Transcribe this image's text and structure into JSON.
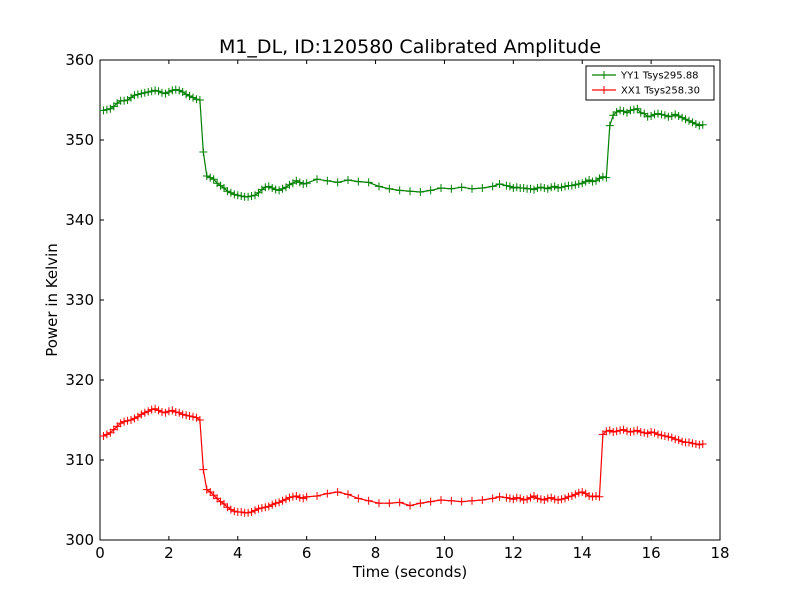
{
  "chart_data": {
    "type": "line",
    "title": "M1_DL, ID:120580 Calibrated Amplitude",
    "xlabel": "Time (seconds)",
    "ylabel": "Power in Kelvin",
    "xlim": [
      0,
      18
    ],
    "ylim": [
      300,
      360
    ],
    "xticks": [
      0,
      2,
      4,
      6,
      8,
      10,
      12,
      14,
      16,
      18
    ],
    "yticks": [
      300,
      310,
      320,
      330,
      340,
      350,
      360
    ],
    "grid": false,
    "legend_position": "top-right",
    "series": [
      {
        "name": "YY1 Tsys295.88",
        "color": "#008000",
        "marker": "+",
        "x": [
          0.1,
          0.2,
          0.3,
          0.4,
          0.5,
          0.6,
          0.7,
          0.8,
          0.9,
          1.0,
          1.1,
          1.2,
          1.3,
          1.4,
          1.5,
          1.6,
          1.7,
          1.8,
          1.9,
          2.0,
          2.1,
          2.2,
          2.3,
          2.4,
          2.5,
          2.6,
          2.7,
          2.8,
          2.9,
          3.0,
          3.1,
          3.2,
          3.3,
          3.4,
          3.5,
          3.6,
          3.7,
          3.8,
          3.9,
          4.0,
          4.1,
          4.2,
          4.3,
          4.4,
          4.5,
          4.6,
          4.7,
          4.8,
          4.9,
          5.0,
          5.1,
          5.2,
          5.3,
          5.4,
          5.5,
          5.6,
          5.7,
          5.8,
          5.9,
          6.0,
          6.3,
          6.6,
          6.9,
          7.2,
          7.5,
          7.8,
          8.1,
          8.4,
          8.7,
          9.0,
          9.3,
          9.6,
          9.9,
          10.2,
          10.5,
          10.8,
          11.1,
          11.4,
          11.6,
          11.8,
          11.9,
          12.0,
          12.1,
          12.2,
          12.3,
          12.4,
          12.5,
          12.6,
          12.7,
          12.8,
          12.9,
          13.0,
          13.1,
          13.2,
          13.3,
          13.4,
          13.5,
          13.6,
          13.7,
          13.8,
          13.9,
          14.0,
          14.1,
          14.2,
          14.3,
          14.4,
          14.5,
          14.6,
          14.7,
          14.8,
          14.9,
          15.0,
          15.1,
          15.2,
          15.3,
          15.4,
          15.5,
          15.6,
          15.7,
          15.8,
          15.9,
          16.0,
          16.1,
          16.2,
          16.3,
          16.4,
          16.5,
          16.6,
          16.7,
          16.8,
          16.9,
          17.0,
          17.1,
          17.2,
          17.3,
          17.4,
          17.5
        ],
        "y": [
          353.7,
          353.8,
          353.9,
          354.2,
          354.6,
          354.9,
          354.9,
          355.0,
          355.3,
          355.6,
          355.7,
          355.8,
          355.9,
          356.0,
          356.1,
          356.2,
          356.1,
          355.9,
          355.8,
          356.0,
          356.2,
          356.3,
          356.2,
          356.0,
          355.7,
          355.5,
          355.3,
          355.1,
          355.0,
          348.5,
          345.5,
          345.3,
          345.1,
          344.6,
          344.3,
          344.0,
          343.6,
          343.4,
          343.2,
          343.1,
          343.0,
          342.9,
          342.9,
          343.0,
          343.1,
          343.4,
          343.8,
          344.1,
          344.2,
          344.0,
          343.8,
          343.7,
          343.9,
          344.1,
          344.4,
          344.6,
          344.9,
          344.7,
          344.5,
          344.6,
          345.1,
          344.9,
          344.7,
          345.0,
          344.8,
          344.7,
          344.2,
          343.9,
          343.7,
          343.6,
          343.5,
          343.7,
          344.0,
          343.9,
          344.1,
          343.9,
          344.0,
          344.2,
          344.5,
          344.3,
          344.2,
          344.0,
          344.1,
          344.0,
          344.0,
          343.9,
          343.9,
          343.8,
          344.0,
          344.1,
          344.0,
          343.9,
          344.1,
          344.2,
          344.0,
          344.1,
          344.2,
          344.3,
          344.3,
          344.4,
          344.5,
          344.6,
          344.8,
          345.0,
          344.8,
          344.9,
          345.2,
          345.4,
          345.3,
          351.8,
          353.1,
          353.5,
          353.7,
          353.6,
          353.4,
          353.7,
          353.8,
          353.9,
          353.4,
          353.3,
          352.9,
          353.0,
          353.2,
          353.3,
          353.2,
          353.1,
          352.9,
          353.0,
          353.2,
          353.0,
          352.8,
          352.6,
          352.4,
          352.2,
          352.0,
          351.8,
          351.9
        ],
        "_comment": "values estimated from gridlines"
      },
      {
        "name": "XX1 Tsys258.30",
        "color": "#ff0000",
        "marker": "+",
        "x": [
          0.1,
          0.2,
          0.3,
          0.4,
          0.5,
          0.6,
          0.7,
          0.8,
          0.9,
          1.0,
          1.1,
          1.2,
          1.3,
          1.4,
          1.5,
          1.6,
          1.7,
          1.8,
          1.9,
          2.0,
          2.1,
          2.2,
          2.3,
          2.4,
          2.5,
          2.6,
          2.7,
          2.8,
          2.9,
          3.0,
          3.1,
          3.2,
          3.3,
          3.4,
          3.5,
          3.6,
          3.7,
          3.8,
          3.9,
          4.0,
          4.1,
          4.2,
          4.3,
          4.4,
          4.5,
          4.6,
          4.7,
          4.8,
          4.9,
          5.0,
          5.1,
          5.2,
          5.3,
          5.4,
          5.5,
          5.6,
          5.7,
          5.8,
          5.9,
          6.0,
          6.3,
          6.6,
          6.9,
          7.2,
          7.5,
          7.8,
          8.1,
          8.4,
          8.7,
          9.0,
          9.3,
          9.6,
          9.9,
          10.2,
          10.5,
          10.8,
          11.1,
          11.4,
          11.6,
          11.8,
          11.9,
          12.0,
          12.1,
          12.2,
          12.3,
          12.4,
          12.5,
          12.6,
          12.7,
          12.8,
          12.9,
          13.0,
          13.1,
          13.2,
          13.3,
          13.4,
          13.5,
          13.6,
          13.7,
          13.8,
          13.9,
          14.0,
          14.1,
          14.2,
          14.3,
          14.4,
          14.5,
          14.6,
          14.7,
          14.8,
          14.9,
          15.0,
          15.1,
          15.2,
          15.3,
          15.4,
          15.5,
          15.6,
          15.7,
          15.8,
          15.9,
          16.0,
          16.1,
          16.2,
          16.3,
          16.4,
          16.5,
          16.6,
          16.7,
          16.8,
          16.9,
          17.0,
          17.1,
          17.2,
          17.3,
          17.4,
          17.5
        ],
        "y": [
          313.0,
          313.2,
          313.4,
          313.8,
          314.2,
          314.6,
          314.8,
          314.9,
          315.0,
          315.2,
          315.4,
          315.7,
          315.9,
          316.1,
          316.3,
          316.4,
          316.2,
          316.0,
          315.9,
          316.1,
          316.2,
          316.0,
          315.9,
          315.7,
          315.6,
          315.5,
          315.4,
          315.3,
          315.0,
          308.8,
          306.3,
          306.0,
          305.6,
          305.2,
          304.8,
          304.5,
          304.1,
          303.8,
          303.6,
          303.5,
          303.5,
          303.4,
          303.4,
          303.5,
          303.7,
          303.9,
          304.0,
          304.1,
          304.2,
          304.4,
          304.6,
          304.7,
          304.9,
          305.1,
          305.3,
          305.4,
          305.5,
          305.3,
          305.2,
          305.4,
          305.5,
          305.8,
          306.0,
          305.7,
          305.2,
          304.9,
          304.6,
          304.6,
          304.7,
          304.3,
          304.6,
          304.8,
          305.0,
          304.9,
          304.8,
          304.9,
          305.0,
          305.2,
          305.4,
          305.3,
          305.2,
          305.1,
          305.3,
          305.2,
          305.0,
          305.1,
          305.3,
          305.5,
          305.2,
          305.1,
          305.0,
          305.2,
          305.3,
          305.1,
          305.0,
          305.1,
          305.2,
          305.4,
          305.5,
          305.7,
          305.9,
          306.0,
          305.8,
          305.5,
          305.4,
          305.5,
          305.4,
          313.2,
          313.6,
          313.7,
          313.5,
          313.6,
          313.7,
          313.8,
          313.6,
          313.5,
          313.6,
          313.7,
          313.5,
          313.4,
          313.3,
          313.5,
          313.4,
          313.2,
          313.1,
          313.0,
          312.9,
          312.8,
          312.6,
          312.5,
          312.3,
          312.2,
          312.2,
          312.1,
          312.0,
          311.9,
          312.0
        ],
        "_comment": "values estimated from gridlines"
      }
    ]
  }
}
